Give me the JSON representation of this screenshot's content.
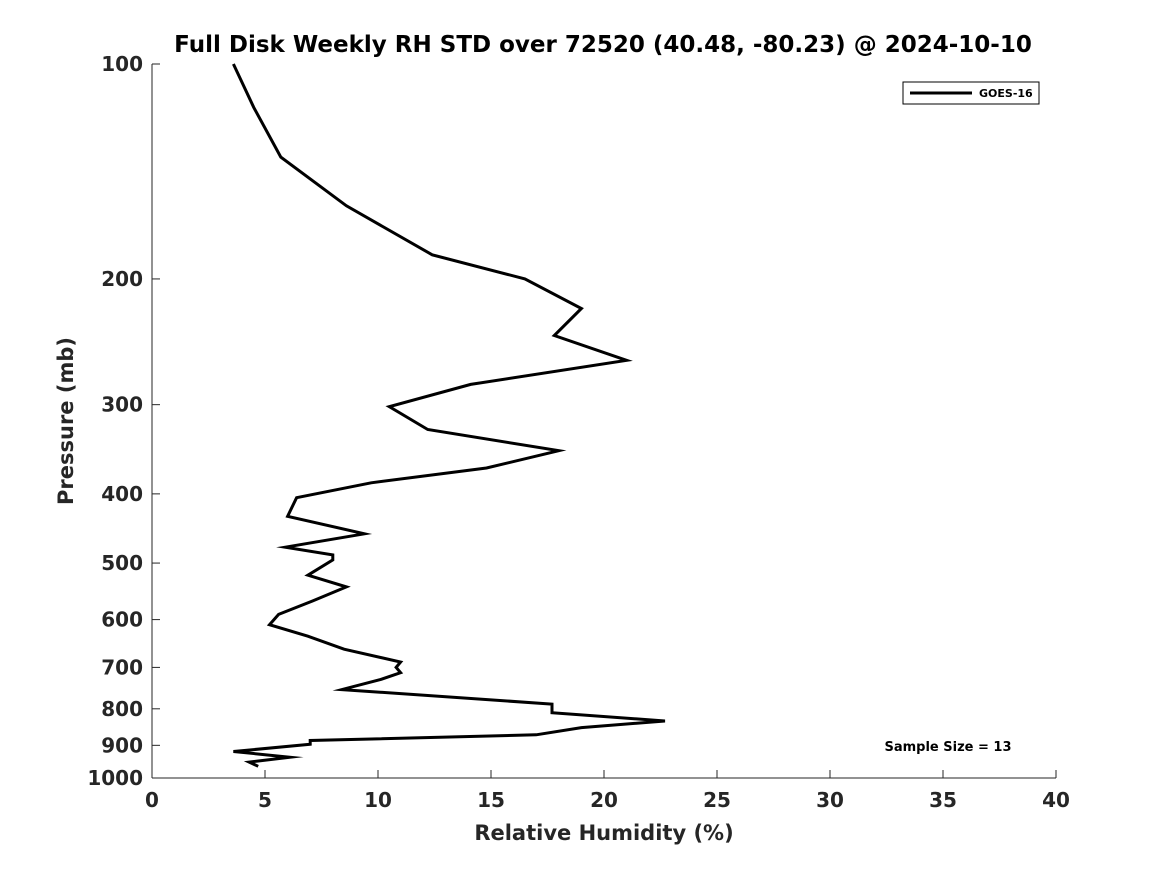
{
  "chart_data": {
    "type": "line",
    "title": "Full Disk Weekly RH STD over 72520 (40.48, -80.23) @ 2024-10-10",
    "xlabel": "Relative Humidity (%)",
    "ylabel": "Pressure (mb)",
    "xlim": [
      0,
      40
    ],
    "ylim": [
      100,
      1000
    ],
    "yscale": "log",
    "y_reversed": true,
    "grid": false,
    "xticks": [
      0,
      5,
      10,
      15,
      20,
      25,
      30,
      35,
      40
    ],
    "yticks": [
      100,
      200,
      300,
      400,
      500,
      600,
      700,
      800,
      900,
      1000
    ],
    "legend": {
      "position": "top-right",
      "entries": [
        "GOES-16"
      ]
    },
    "annotation": "Sample Size = 13",
    "series": [
      {
        "name": "GOES-16",
        "color": "#000000",
        "x": [
          3.6,
          4.5,
          5.7,
          8.6,
          12.4,
          16.5,
          19.0,
          17.8,
          21.0,
          14.1,
          10.5,
          12.2,
          18.0,
          14.8,
          9.7,
          6.4,
          6.0,
          9.4,
          5.9,
          8.0,
          8.0,
          6.9,
          8.6,
          7.1,
          5.6,
          5.2,
          6.9,
          8.5,
          11.0,
          10.8,
          11.0,
          10.1,
          8.4,
          17.7,
          17.7,
          22.7,
          19.0,
          17.0,
          7.0,
          7.0,
          3.6,
          6.1,
          4.3,
          4.7
        ],
        "y": [
          100,
          115,
          135,
          158,
          185,
          200,
          220,
          240,
          260,
          281,
          302,
          325,
          348,
          368,
          386,
          405,
          430,
          455,
          475,
          487,
          495,
          520,
          540,
          565,
          590,
          610,
          633,
          660,
          688,
          700,
          712,
          728,
          752,
          788,
          810,
          832,
          850,
          870,
          886,
          897,
          918,
          935,
          950,
          963
        ]
      }
    ]
  }
}
